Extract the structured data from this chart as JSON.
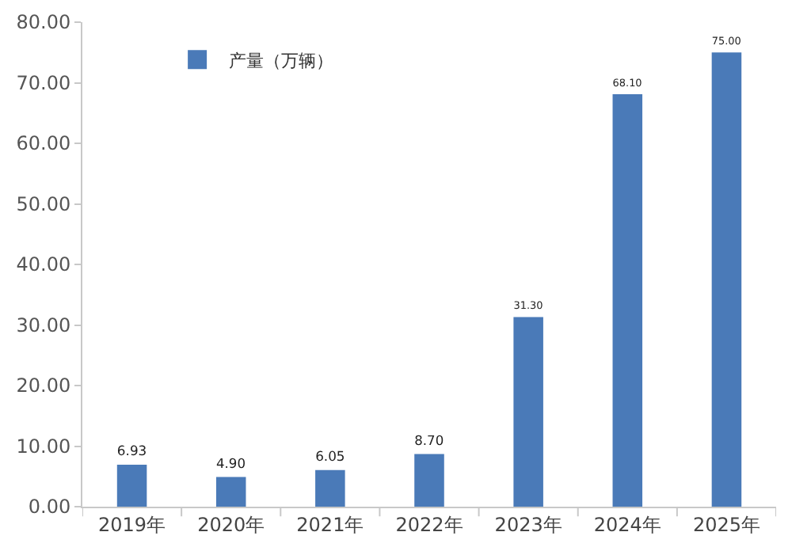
{
  "chart_data": {
    "type": "bar",
    "categories": [
      "2019年",
      "2020年",
      "2021年",
      "2022年",
      "2023年",
      "2024年",
      "2025年"
    ],
    "series": [
      {
        "name": "产量（万辆）",
        "color": "#4a7ab8",
        "values": [
          6.93,
          4.9,
          6.05,
          8.7,
          31.3,
          68.1,
          75
        ]
      }
    ],
    "value_labels": [
      "6.93",
      "4.90",
      "6.05",
      "8.70",
      "31.30",
      "68.10",
      "75.00"
    ],
    "ylim": [
      0,
      80
    ],
    "yticks": [
      {
        "value": 0,
        "label": "0.00"
      },
      {
        "value": 10,
        "label": "10.00"
      },
      {
        "value": 20,
        "label": "20.00"
      },
      {
        "value": 30,
        "label": "30.00"
      },
      {
        "value": 40,
        "label": "40.00"
      },
      {
        "value": 50,
        "label": "50.00"
      },
      {
        "value": 60,
        "label": "60.00"
      },
      {
        "value": 70,
        "label": "70.00"
      },
      {
        "value": 80,
        "label": "80.00"
      }
    ],
    "grid": false,
    "legend": "top left"
  }
}
